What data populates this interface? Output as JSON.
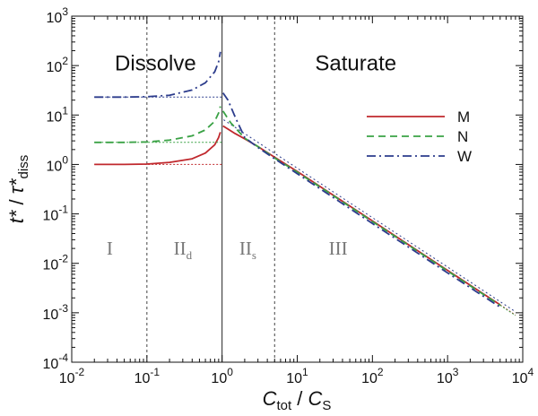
{
  "chart_data": {
    "type": "line",
    "xscale": "log",
    "yscale": "log",
    "xlim": [
      0.01,
      10000
    ],
    "ylim": [
      0.0001,
      1000
    ],
    "grid": false,
    "legend_position": "top-right",
    "x_tick_labels": [
      {
        "base": "10",
        "exp": "-2",
        "value": 0.01
      },
      {
        "base": "10",
        "exp": "-1",
        "value": 0.1
      },
      {
        "base": "10",
        "exp": "0",
        "value": 1
      },
      {
        "base": "10",
        "exp": "1",
        "value": 10
      },
      {
        "base": "10",
        "exp": "2",
        "value": 100
      },
      {
        "base": "10",
        "exp": "3",
        "value": 1000
      },
      {
        "base": "10",
        "exp": "4",
        "value": 10000
      }
    ],
    "y_tick_labels": [
      {
        "base": "10",
        "exp": "-4",
        "value": 0.0001
      },
      {
        "base": "10",
        "exp": "-3",
        "value": 0.001
      },
      {
        "base": "10",
        "exp": "-2",
        "value": 0.01
      },
      {
        "base": "10",
        "exp": "-1",
        "value": 0.1
      },
      {
        "base": "10",
        "exp": "0",
        "value": 1
      },
      {
        "base": "10",
        "exp": "1",
        "value": 10
      },
      {
        "base": "10",
        "exp": "2",
        "value": 100
      },
      {
        "base": "10",
        "exp": "3",
        "value": 1000
      }
    ],
    "xlabel": {
      "main": "C",
      "sub": "tot",
      "sep": " / ",
      "main2": "C",
      "sub2": "S"
    },
    "ylabel": {
      "main": "t*",
      "sep": " / ",
      "main2": "τ*",
      "sub2": "diss"
    },
    "region_titles": [
      {
        "text": "Dissolve",
        "x": 0.13,
        "y": 80
      },
      {
        "text": "Saturate",
        "x": 60,
        "y": 80
      }
    ],
    "region_labels": [
      {
        "text": "I",
        "sub": "",
        "x": 0.032,
        "y": 0.015
      },
      {
        "text": "II",
        "sub": "d",
        "x": 0.3,
        "y": 0.015
      },
      {
        "text": "II",
        "sub": "s",
        "x": 2.2,
        "y": 0.015
      },
      {
        "text": "III",
        "sub": "",
        "x": 35,
        "y": 0.015
      }
    ],
    "vertical_lines": [
      {
        "x": 0.1,
        "style": "dotted"
      },
      {
        "x": 1.0,
        "style": "solid"
      },
      {
        "x": 5.0,
        "style": "dotted"
      }
    ],
    "series": [
      {
        "name": "M",
        "color": "#c0282d",
        "dash": "solid",
        "segments": [
          [
            [
              0.02,
              1.0
            ],
            [
              0.05,
              1.0
            ],
            [
              0.1,
              1.02
            ],
            [
              0.2,
              1.1
            ],
            [
              0.4,
              1.3
            ],
            [
              0.6,
              1.7
            ],
            [
              0.8,
              2.5
            ],
            [
              0.9,
              3.5
            ],
            [
              0.95,
              4.5
            ]
          ],
          [
            [
              1.03,
              6.0
            ],
            [
              1.5,
              4.2
            ],
            [
              2,
              3.3
            ],
            [
              3,
              2.3
            ],
            [
              5,
              1.4
            ],
            [
              10,
              0.72
            ],
            [
              30,
              0.24
            ],
            [
              100,
              0.072
            ],
            [
              300,
              0.024
            ],
            [
              1000,
              0.0072
            ],
            [
              3000,
              0.0024
            ],
            [
              5000,
              0.00145
            ]
          ]
        ],
        "asymptotes": [
          [
            [
              0.02,
              1.0
            ],
            [
              1.0,
              1.0
            ]
          ],
          [
            [
              5000,
              0.00145
            ],
            [
              8000,
              0.0009
            ]
          ]
        ]
      },
      {
        "name": "N",
        "color": "#3aa245",
        "dash": "8,5",
        "segments": [
          [
            [
              0.02,
              2.8
            ],
            [
              0.05,
              2.8
            ],
            [
              0.1,
              2.85
            ],
            [
              0.2,
              3.1
            ],
            [
              0.4,
              3.8
            ],
            [
              0.6,
              5.0
            ],
            [
              0.8,
              7.5
            ],
            [
              0.9,
              11
            ],
            [
              0.95,
              15
            ]
          ],
          [
            [
              1.03,
              12
            ],
            [
              1.3,
              7
            ],
            [
              2,
              3.4
            ],
            [
              3,
              2.3
            ],
            [
              5,
              1.35
            ],
            [
              10,
              0.7
            ],
            [
              30,
              0.235
            ],
            [
              100,
              0.07
            ],
            [
              300,
              0.0235
            ],
            [
              1000,
              0.007
            ],
            [
              3000,
              0.00235
            ],
            [
              5000,
              0.00142
            ]
          ]
        ],
        "asymptotes": [
          [
            [
              0.02,
              2.8
            ],
            [
              1.0,
              2.8
            ]
          ],
          [
            [
              5000,
              0.00142
            ],
            [
              8000,
              0.00088
            ]
          ]
        ]
      },
      {
        "name": "W",
        "color": "#2c3c8c",
        "dash": "10,4,2,4",
        "segments": [
          [
            [
              0.02,
              23
            ],
            [
              0.05,
              23
            ],
            [
              0.1,
              23.5
            ],
            [
              0.2,
              25
            ],
            [
              0.4,
              32
            ],
            [
              0.6,
              45
            ],
            [
              0.8,
              75
            ],
            [
              0.9,
              120
            ],
            [
              0.95,
              190
            ]
          ],
          [
            [
              1.03,
              28
            ],
            [
              1.2,
              20
            ],
            [
              1.5,
              9
            ],
            [
              2,
              3.5
            ],
            [
              3,
              2.2
            ],
            [
              5,
              1.3
            ],
            [
              10,
              0.65
            ],
            [
              30,
              0.215
            ],
            [
              100,
              0.064
            ],
            [
              300,
              0.0215
            ],
            [
              1000,
              0.0064
            ],
            [
              3000,
              0.00215
            ],
            [
              5000,
              0.0013
            ]
          ]
        ],
        "asymptotes": [
          [
            [
              0.02,
              23
            ],
            [
              1.0,
              23
            ]
          ]
        ]
      }
    ],
    "reference_line": {
      "color": "#2c3c8c",
      "dash": "2,3",
      "points": [
        [
          1.05,
          8
        ],
        [
          8000,
          0.00105
        ]
      ]
    }
  }
}
